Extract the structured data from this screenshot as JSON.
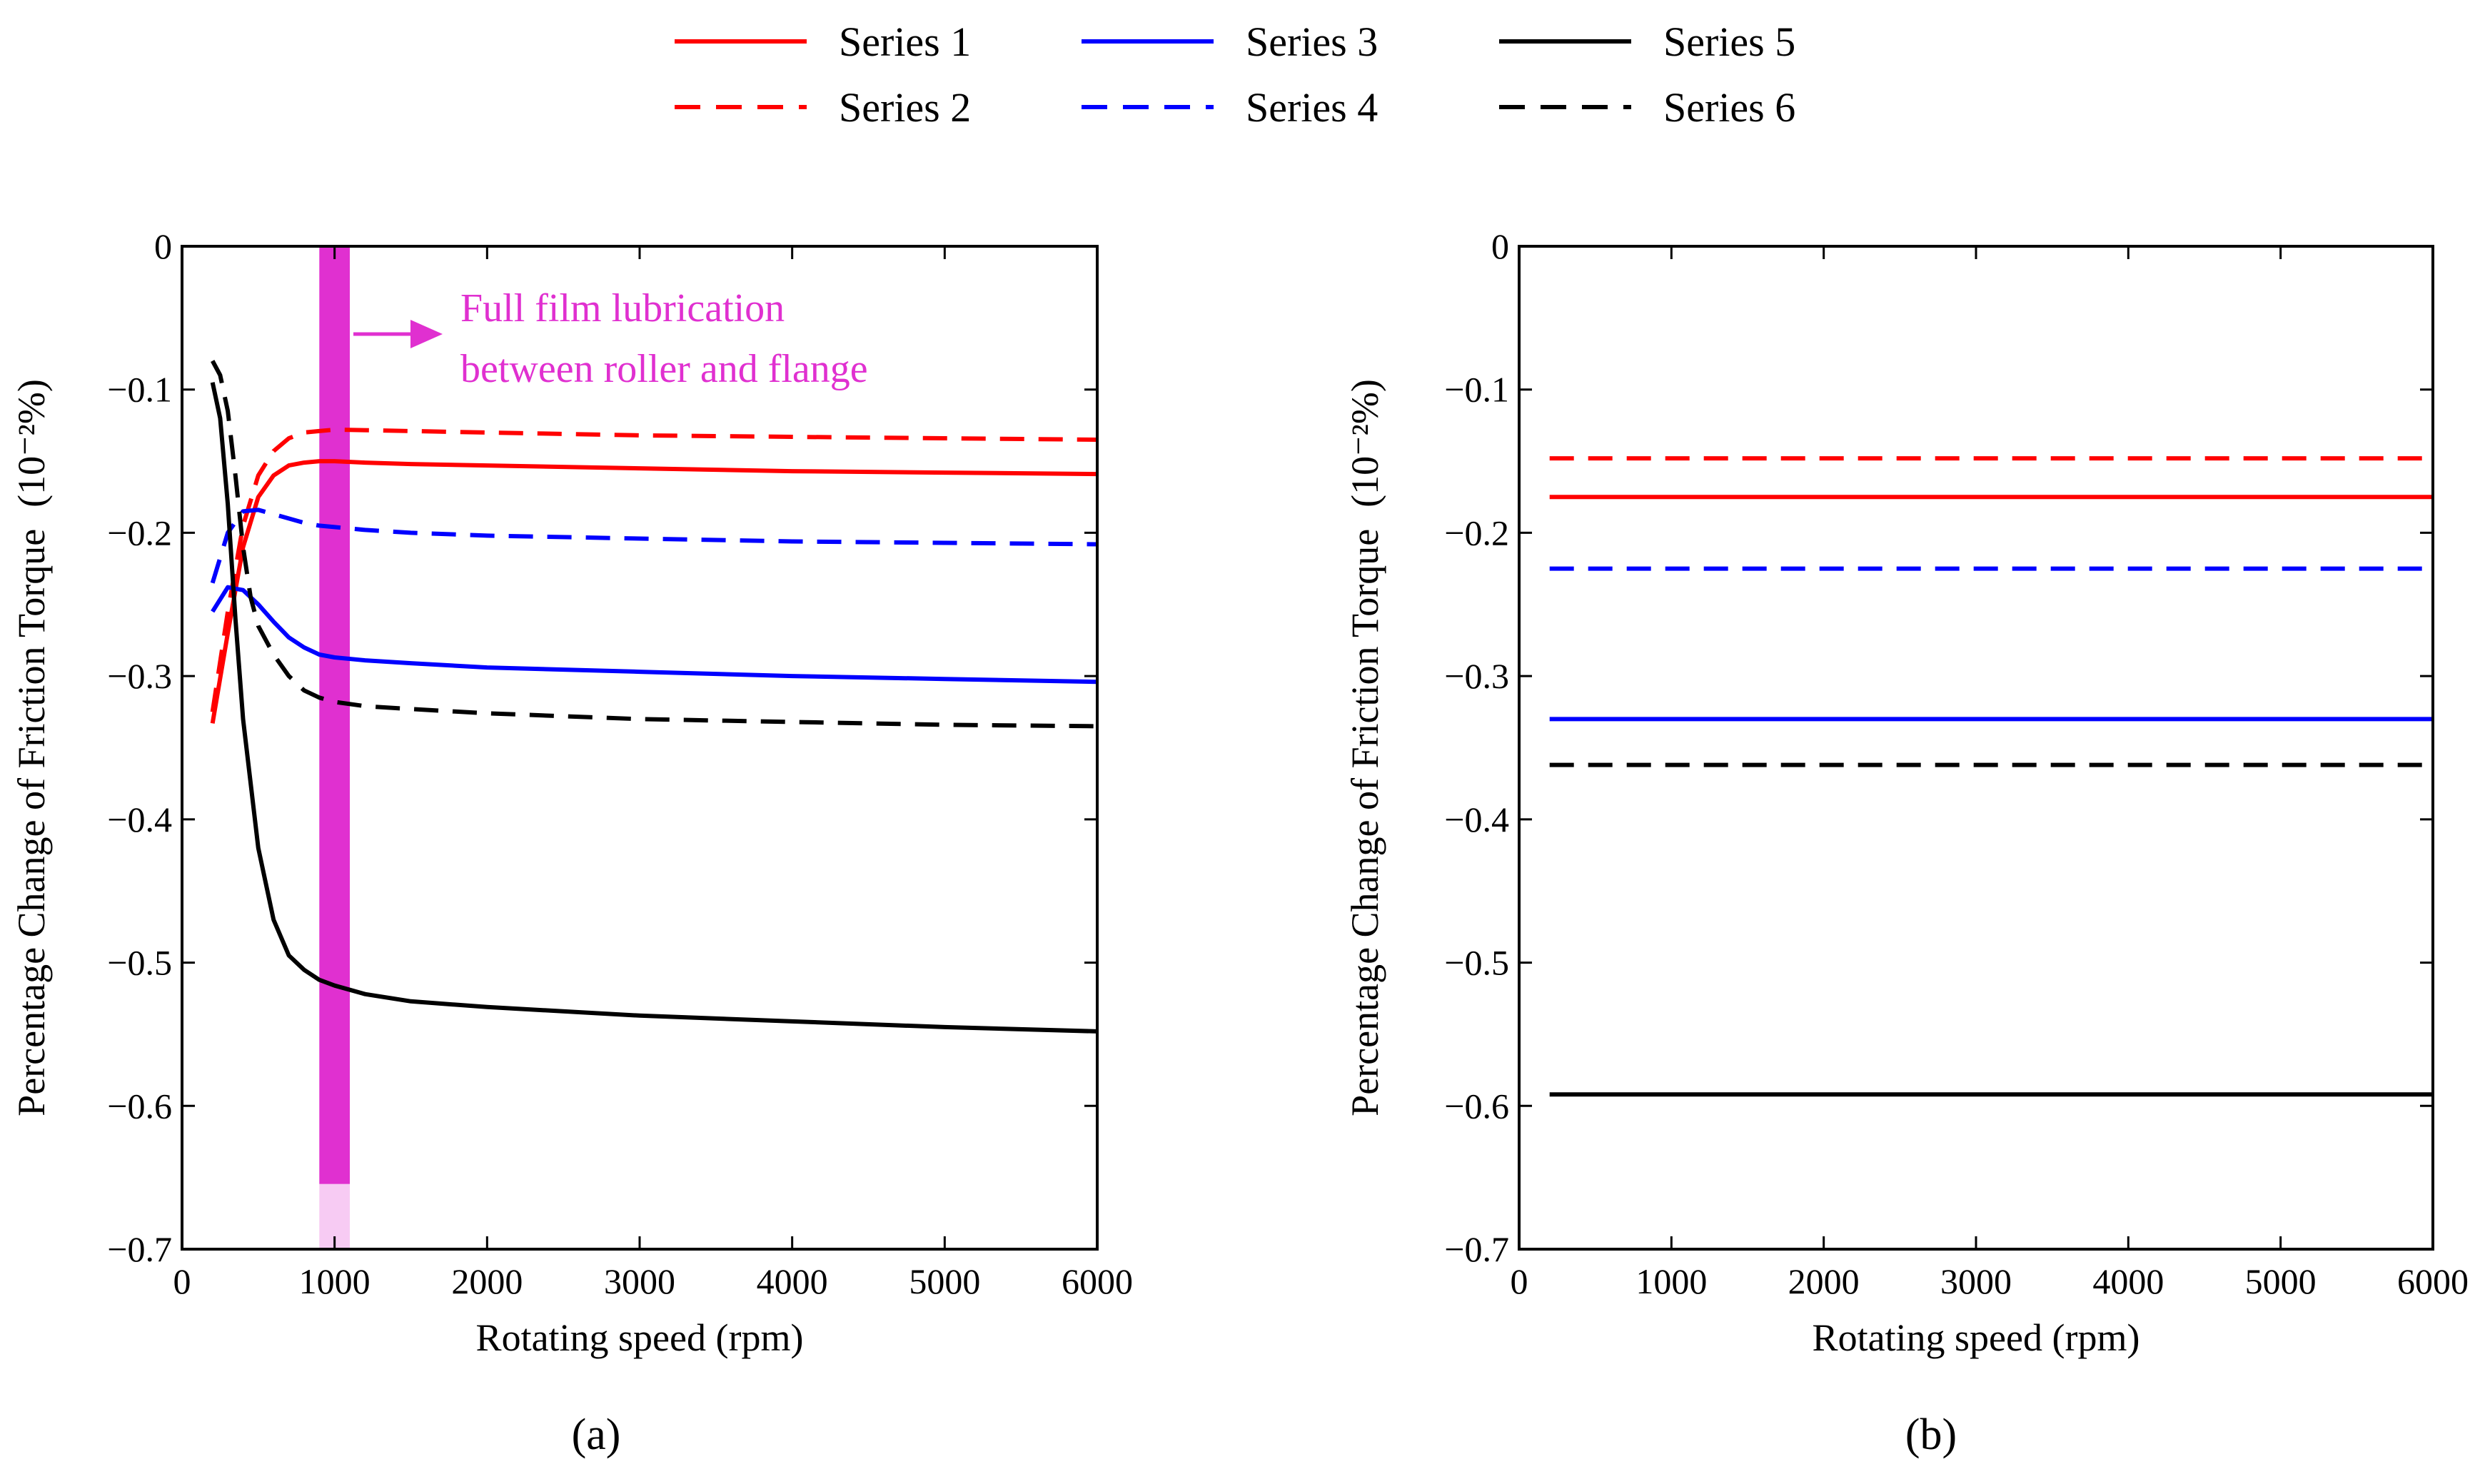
{
  "legend": [
    {
      "name": "Series 1",
      "color": "#ff0000",
      "dash": "solid"
    },
    {
      "name": "Series 2",
      "color": "#ff0000",
      "dash": "dashed"
    },
    {
      "name": "Series 3",
      "color": "#0000ff",
      "dash": "solid"
    },
    {
      "name": "Series 4",
      "color": "#0000ff",
      "dash": "dashed"
    },
    {
      "name": "Series 5",
      "color": "#000000",
      "dash": "solid"
    },
    {
      "name": "Series 6",
      "color": "#000000",
      "dash": "dashed"
    }
  ],
  "annotation": {
    "line1": "Full film lubrication",
    "line2": "between roller and flange",
    "color": "#e030d0"
  },
  "chart_data": [
    {
      "type": "line",
      "caption": "(a)",
      "xlabel": "Rotating speed (rpm)",
      "ylabel": "Percentage Change of Friction Torque",
      "ylabel_unit": "(10⁻²%)",
      "xlim": [
        0,
        6000
      ],
      "ylim": [
        -0.7,
        0
      ],
      "xticks": [
        0,
        1000,
        2000,
        3000,
        4000,
        5000,
        6000
      ],
      "yticks": [
        0,
        -0.1,
        -0.2,
        -0.3,
        -0.4,
        -0.5,
        -0.6,
        -0.7
      ],
      "ytick_labels": [
        "0",
        "−0.1",
        "−0.2",
        "−0.3",
        "−0.4",
        "−0.5",
        "−0.6",
        "−0.7"
      ],
      "highlight_band": {
        "x_start": 900,
        "x_end": 1100,
        "color": "#e030d0"
      },
      "series": [
        {
          "name": "Series 1",
          "x": [
            200,
            300,
            400,
            500,
            600,
            700,
            800,
            900,
            1000,
            1200,
            1500,
            2000,
            3000,
            4000,
            5000,
            6000
          ],
          "y": [
            -0.333,
            -0.27,
            -0.21,
            -0.175,
            -0.16,
            -0.153,
            -0.151,
            -0.15,
            -0.15,
            -0.151,
            -0.152,
            -0.153,
            -0.155,
            -0.157,
            -0.158,
            -0.159
          ]
        },
        {
          "name": "Series 2",
          "x": [
            200,
            300,
            400,
            500,
            600,
            700,
            800,
            900,
            1000,
            1500,
            2000,
            3000,
            4000,
            5000,
            6000
          ],
          "y": [
            -0.325,
            -0.255,
            -0.195,
            -0.16,
            -0.143,
            -0.134,
            -0.13,
            -0.129,
            -0.128,
            -0.129,
            -0.13,
            -0.132,
            -0.133,
            -0.134,
            -0.135
          ]
        },
        {
          "name": "Series 3",
          "x": [
            200,
            300,
            400,
            500,
            600,
            700,
            800,
            900,
            1000,
            1200,
            1500,
            2000,
            3000,
            4000,
            5000,
            6000
          ],
          "y": [
            -0.255,
            -0.238,
            -0.24,
            -0.25,
            -0.262,
            -0.273,
            -0.28,
            -0.285,
            -0.287,
            -0.289,
            -0.291,
            -0.294,
            -0.297,
            -0.3,
            -0.302,
            -0.304
          ]
        },
        {
          "name": "Series 4",
          "x": [
            200,
            300,
            400,
            500,
            600,
            700,
            800,
            900,
            1000,
            1200,
            1500,
            2000,
            3000,
            4000,
            5000,
            6000
          ],
          "y": [
            -0.235,
            -0.2,
            -0.185,
            -0.184,
            -0.187,
            -0.19,
            -0.193,
            -0.195,
            -0.196,
            -0.198,
            -0.2,
            -0.202,
            -0.204,
            -0.206,
            -0.207,
            -0.208
          ]
        },
        {
          "name": "Series 5",
          "x": [
            200,
            250,
            300,
            350,
            400,
            500,
            600,
            700,
            800,
            900,
            1000,
            1200,
            1500,
            2000,
            3000,
            4000,
            5000,
            6000
          ],
          "y": [
            -0.095,
            -0.12,
            -0.18,
            -0.26,
            -0.33,
            -0.42,
            -0.47,
            -0.495,
            -0.505,
            -0.512,
            -0.516,
            -0.522,
            -0.527,
            -0.531,
            -0.537,
            -0.541,
            -0.545,
            -0.548
          ]
        },
        {
          "name": "Series 6",
          "x": [
            200,
            250,
            300,
            350,
            400,
            450,
            500,
            600,
            700,
            800,
            900,
            1000,
            1200,
            1500,
            2000,
            3000,
            4000,
            5000,
            6000
          ],
          "y": [
            -0.08,
            -0.09,
            -0.115,
            -0.16,
            -0.21,
            -0.245,
            -0.265,
            -0.285,
            -0.3,
            -0.31,
            -0.315,
            -0.318,
            -0.321,
            -0.323,
            -0.326,
            -0.33,
            -0.332,
            -0.334,
            -0.335
          ]
        }
      ]
    },
    {
      "type": "line",
      "caption": "(b)",
      "xlabel": "Rotating speed (rpm)",
      "ylabel": "Percentage Change of Friction Torque",
      "ylabel_unit": "(10⁻²%)",
      "xlim": [
        0,
        6000
      ],
      "ylim": [
        -0.7,
        0
      ],
      "xticks": [
        0,
        1000,
        2000,
        3000,
        4000,
        5000,
        6000
      ],
      "yticks": [
        0,
        -0.1,
        -0.2,
        -0.3,
        -0.4,
        -0.5,
        -0.6,
        -0.7
      ],
      "ytick_labels": [
        "0",
        "−0.1",
        "−0.2",
        "−0.3",
        "−0.4",
        "−0.5",
        "−0.6",
        "−0.7"
      ],
      "series": [
        {
          "name": "Series 1",
          "x": [
            200,
            6000
          ],
          "y": [
            -0.175,
            -0.175
          ]
        },
        {
          "name": "Series 2",
          "x": [
            200,
            6000
          ],
          "y": [
            -0.148,
            -0.148
          ]
        },
        {
          "name": "Series 3",
          "x": [
            200,
            6000
          ],
          "y": [
            -0.33,
            -0.33
          ]
        },
        {
          "name": "Series 4",
          "x": [
            200,
            6000
          ],
          "y": [
            -0.225,
            -0.225
          ]
        },
        {
          "name": "Series 5",
          "x": [
            200,
            6000
          ],
          "y": [
            -0.592,
            -0.592
          ]
        },
        {
          "name": "Series 6",
          "x": [
            200,
            6000
          ],
          "y": [
            -0.362,
            -0.362
          ]
        }
      ]
    }
  ]
}
